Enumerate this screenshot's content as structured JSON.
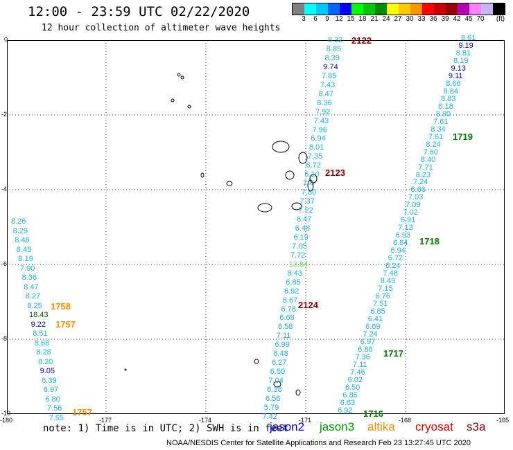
{
  "title": "12:00 - 23:59 UTC 02/22/2020",
  "subtitle": "12 hour collection of altimeter wave heights",
  "color_scale": {
    "unit": "(ft)",
    "colors": [
      "#808080",
      "#00ffff",
      "#00c8ff",
      "#0064ff",
      "#0000ff",
      "#00ff00",
      "#00c800",
      "#008c00",
      "#ffff00",
      "#ffc800",
      "#ff9600",
      "#ff0000",
      "#c80000",
      "#960000",
      "#b400b4",
      "#ff80ff",
      "#c8b4ff",
      "#000000"
    ],
    "labels": [
      "3",
      "6",
      "9",
      "12",
      "15",
      "18",
      "21",
      "24",
      "27",
      "30",
      "33",
      "36",
      "39",
      "42",
      "45",
      "70"
    ]
  },
  "axes": {
    "x_ticks": [
      "-180",
      "-177",
      "-174",
      "-171",
      "-168",
      "-165"
    ],
    "y_ticks": [
      "0",
      "-2",
      "-4",
      "-6",
      "-8",
      "-10"
    ]
  },
  "passes": [
    {
      "label": "2122",
      "color": "#8b0000"
    },
    {
      "label": "2123",
      "color": "#8b0000"
    },
    {
      "label": "2124",
      "color": "#8b0000"
    },
    {
      "label": "1719",
      "color": "#007a00"
    },
    {
      "label": "1718",
      "color": "#007a00"
    },
    {
      "label": "1717",
      "color": "#007a00"
    },
    {
      "label": "1716",
      "color": "#007a00"
    },
    {
      "label": "1758",
      "color": "#ff8c00"
    },
    {
      "label": "1757",
      "color": "#ff8c00"
    },
    {
      "label": "1757",
      "color": "#ff8c00"
    }
  ],
  "tracks": {
    "left": [
      "8.26",
      "8.29",
      "8.48",
      "8.45",
      "8.19",
      "7.90",
      "8.36",
      "8.47",
      "8.27",
      "8.25",
      "18.43",
      "9.22",
      "8.51",
      "8.68",
      "8.28",
      "8.20",
      "9.05",
      "6.39",
      "6.97",
      "6.80",
      "7.56",
      "7.55"
    ],
    "left_colors": [
      "c",
      "c",
      "c",
      "c",
      "c",
      "c",
      "c",
      "c",
      "c",
      "c",
      "g",
      "b",
      "c",
      "c",
      "c",
      "c",
      "b",
      "c",
      "c",
      "c",
      "c",
      "c"
    ],
    "middle": [
      "8.32",
      "8.85",
      "8.39",
      "9.74",
      "7.85",
      "7.43",
      "8.47",
      "8.36",
      "7.92",
      "7.43",
      "7.96",
      "6.94",
      "8.01",
      "7.35",
      "6.72",
      "6.10",
      "7.4",
      "7.80",
      "7.37",
      "7.22",
      "6.47",
      "6.48",
      "6.19",
      "7.05",
      "7.72",
      "13.84",
      "8.43",
      "6.85",
      "6.92",
      "6.67",
      "6.78",
      "6.68",
      "6.58",
      "7.11",
      "6.99",
      "6.48",
      "6.27",
      "6.50",
      "7.04",
      "6.38",
      "6.56",
      "5.79",
      "7.42"
    ],
    "middle_colors": [
      "c",
      "c",
      "c",
      "b",
      "c",
      "c",
      "c",
      "c",
      "c",
      "c",
      "c",
      "c",
      "c",
      "c",
      "c",
      "c",
      "c",
      "c",
      "c",
      "c",
      "c",
      "c",
      "c",
      "c",
      "c",
      "lg",
      "c",
      "c",
      "c",
      "c",
      "c",
      "c",
      "c",
      "c",
      "c",
      "c",
      "c",
      "c",
      "c",
      "c",
      "c",
      "c",
      "c"
    ],
    "right": [
      "8.61",
      "9.19",
      "8.81",
      "8.19",
      "9.13",
      "9.11",
      "8.66",
      "8.84",
      "8.83",
      "8.18",
      "8.80",
      "7.61",
      "8.34",
      "7.61",
      "8.24",
      "7.60",
      "8.40",
      "7.71",
      "8.23",
      "7.24",
      "6.66",
      "7.03",
      "7.09",
      "7.02",
      "6.91",
      "7.13",
      "6.93",
      "6.84",
      "6.94",
      "6.72",
      "6.24",
      "7.48",
      "8.43",
      "7.15",
      "6.76",
      "7.51",
      "6.85",
      "6.41",
      "6.69",
      "7.24",
      "6.97",
      "6.88",
      "7.36",
      "7.11",
      "7.46",
      "6.02",
      "6.50",
      "6.86",
      "6.63",
      "6.92"
    ],
    "right_colors": [
      "c",
      "b",
      "c",
      "c",
      "b",
      "b",
      "c",
      "c",
      "c",
      "c",
      "c",
      "c",
      "c",
      "c",
      "c",
      "c",
      "c",
      "c",
      "c",
      "c",
      "c",
      "c",
      "c",
      "c",
      "c",
      "c",
      "c",
      "c",
      "c",
      "c",
      "c",
      "c",
      "c",
      "c",
      "c",
      "c",
      "c",
      "c",
      "c",
      "c",
      "c",
      "c",
      "c",
      "c",
      "c",
      "c",
      "c",
      "c",
      "c",
      "c"
    ]
  },
  "note": "note: 1) Time is in UTC; 2) SWH is in feet",
  "legend": [
    {
      "name": "jason2",
      "color": "#0000dd"
    },
    {
      "name": "jason3",
      "color": "#009900"
    },
    {
      "name": "altika",
      "color": "#ff8c00"
    },
    {
      "name": "cryosat",
      "color": "#dd0000"
    },
    {
      "name": "s3a",
      "color": "#8b0000"
    }
  ],
  "credit": "NOAA/NESDIS Center for Satellite Applications and Research    Feb 23 13:27:45 UTC 2020"
}
